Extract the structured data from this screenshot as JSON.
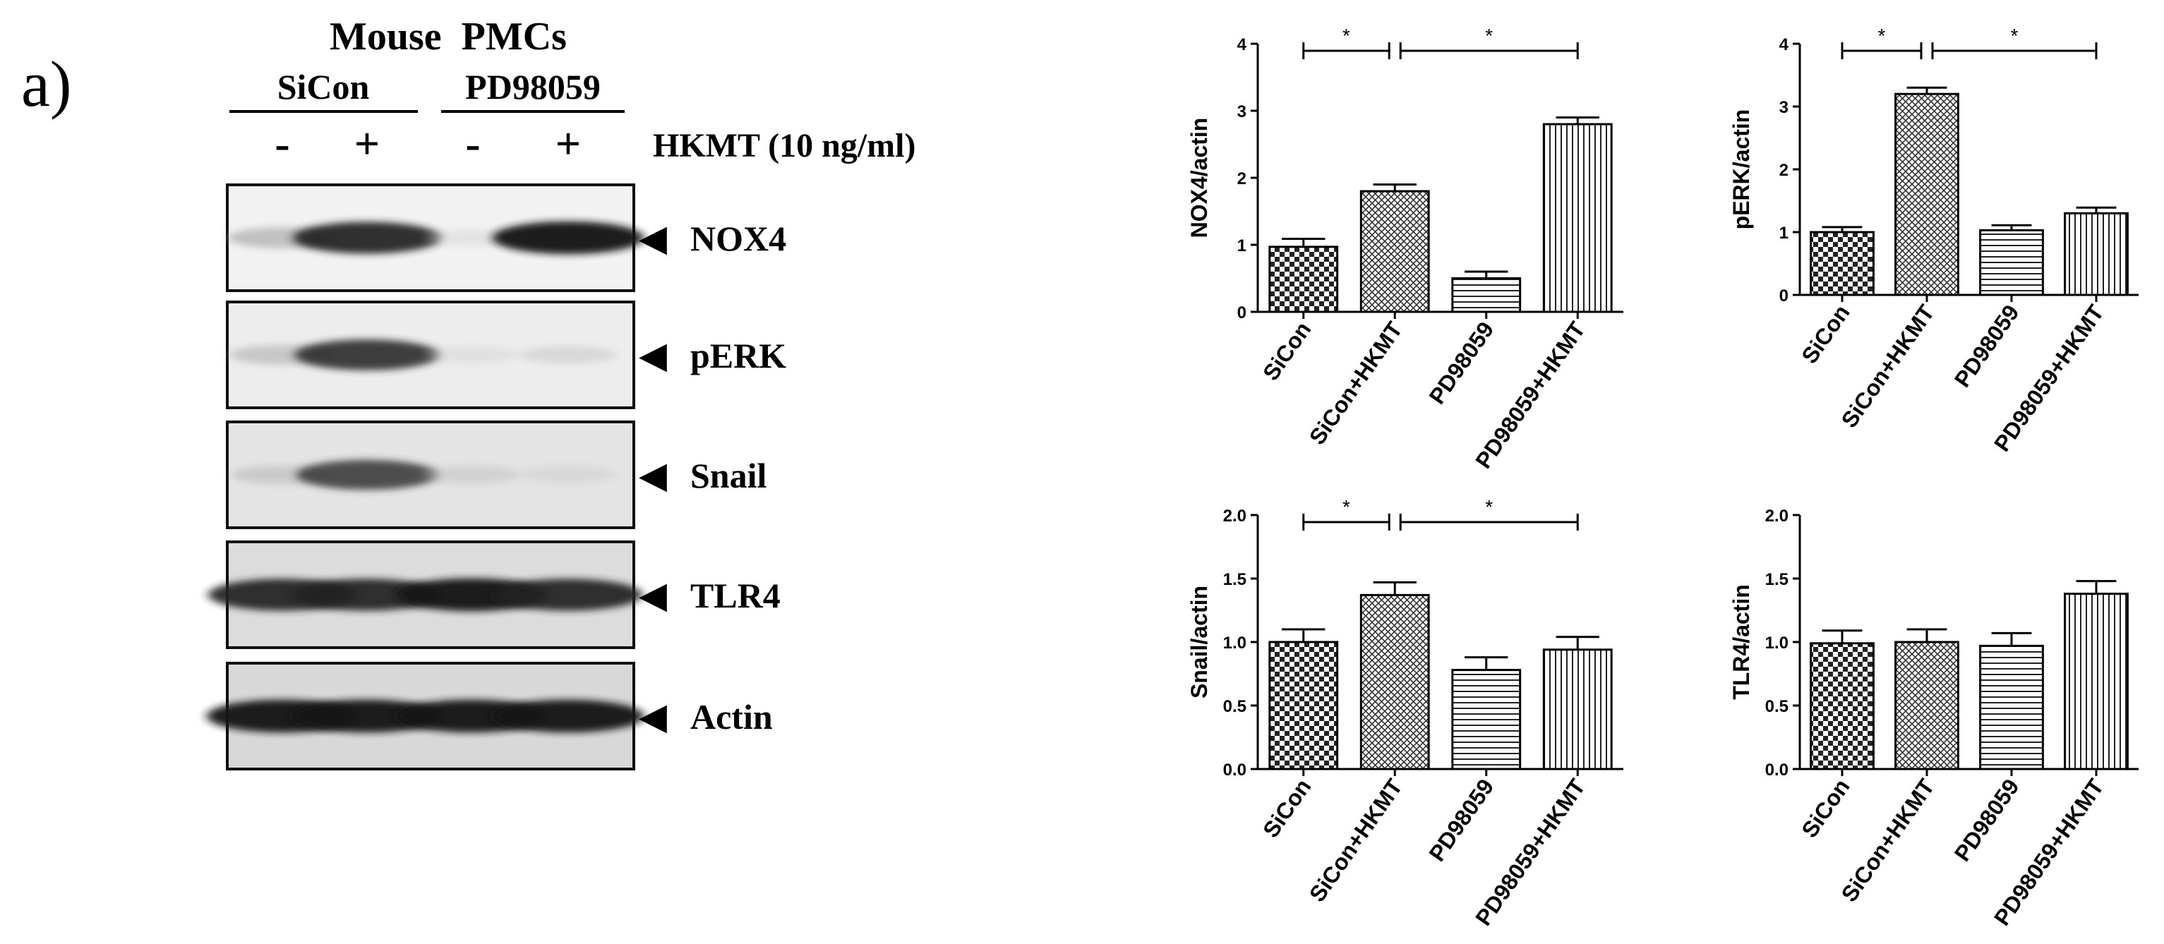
{
  "panel_label": "a)",
  "blot": {
    "title": "Mouse  PMCs",
    "groups": [
      {
        "label": "SiCon"
      },
      {
        "label": "PD98059"
      }
    ],
    "lane_signs": [
      "-",
      "+",
      "-",
      "+"
    ],
    "treatment_label": "HKMT (10 ng/ml)",
    "arrow_glyph": "◀",
    "bands": [
      {
        "label": "NOX4",
        "intensity": [
          0.35,
          0.9,
          0.12,
          0.95
        ]
      },
      {
        "label": "pERK",
        "intensity": [
          0.3,
          0.85,
          0.12,
          0.18
        ]
      },
      {
        "label": "Snail",
        "intensity": [
          0.25,
          0.8,
          0.2,
          0.15
        ]
      },
      {
        "label": "TLR4",
        "intensity": [
          0.9,
          0.9,
          0.95,
          0.9
        ]
      },
      {
        "label": "Actin",
        "intensity": [
          0.95,
          0.95,
          0.95,
          0.95
        ]
      }
    ]
  },
  "chart_data": [
    {
      "type": "bar",
      "categories": [
        "SiCon",
        "SiCon+HKMT",
        "PD98059",
        "PD98059+HKMT"
      ],
      "values": [
        0.97,
        1.8,
        0.5,
        2.8
      ],
      "errors": [
        0.12,
        0.1,
        0.1,
        0.1
      ],
      "ylabel": "NOX4/actin",
      "ylim": [
        0,
        4
      ],
      "yticks": [
        "0",
        "1",
        "2",
        "3",
        "4"
      ],
      "significance": [
        {
          "from": 0,
          "to": 1,
          "label": "*"
        },
        {
          "from": 1,
          "to": 3,
          "label": "*"
        }
      ]
    },
    {
      "type": "bar",
      "categories": [
        "SiCon",
        "SiCon+HKMT",
        "PD98059",
        "PD98059+HKMT"
      ],
      "values": [
        1.0,
        3.2,
        1.03,
        1.3
      ],
      "errors": [
        0.08,
        0.1,
        0.08,
        0.09
      ],
      "ylabel": "pERK/actin",
      "ylim": [
        0,
        4
      ],
      "yticks": [
        "0",
        "1",
        "2",
        "3",
        "4"
      ],
      "significance": [
        {
          "from": 0,
          "to": 1,
          "label": "*"
        },
        {
          "from": 1,
          "to": 3,
          "label": "*"
        }
      ]
    },
    {
      "type": "bar",
      "categories": [
        "SiCon",
        "SiCon+HKMT",
        "PD98059",
        "PD98059+HKMT"
      ],
      "values": [
        1.0,
        1.37,
        0.78,
        0.94
      ],
      "errors": [
        0.1,
        0.1,
        0.1,
        0.1
      ],
      "ylabel": "Snail/actin",
      "ylim": [
        0,
        2
      ],
      "yticks": [
        "0.0",
        "0.5",
        "1.0",
        "1.5",
        "2.0"
      ],
      "significance": [
        {
          "from": 0,
          "to": 1,
          "label": "*"
        },
        {
          "from": 1,
          "to": 3,
          "label": "*"
        }
      ]
    },
    {
      "type": "bar",
      "categories": [
        "SiCon",
        "SiCon+HKMT",
        "PD98059",
        "PD98059+HKMT"
      ],
      "values": [
        0.99,
        1.0,
        0.97,
        1.38
      ],
      "errors": [
        0.1,
        0.1,
        0.1,
        0.1
      ],
      "ylabel": "TLR4/actin",
      "ylim": [
        0,
        2
      ],
      "yticks": [
        "0.0",
        "0.5",
        "1.0",
        "1.5",
        "2.0"
      ],
      "significance": []
    }
  ]
}
